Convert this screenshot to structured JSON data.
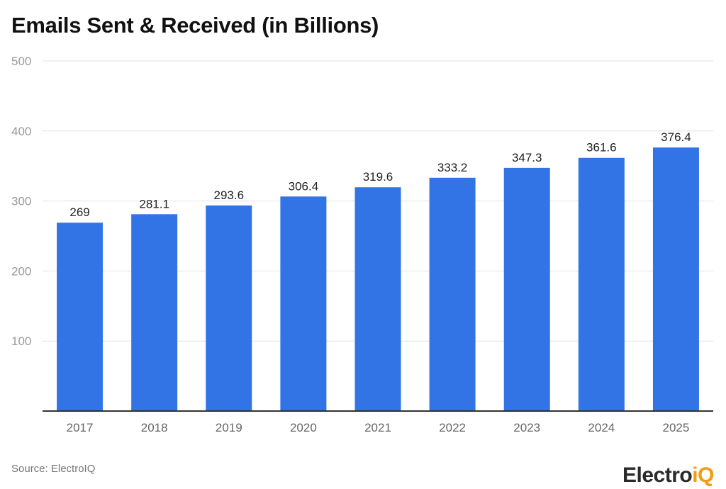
{
  "chart_data": {
    "type": "bar",
    "title": "Emails Sent & Received (in Billions)",
    "categories": [
      "2017",
      "2018",
      "2019",
      "2020",
      "2021",
      "2022",
      "2023",
      "2024",
      "2025"
    ],
    "values": [
      269,
      281.1,
      293.6,
      306.4,
      319.6,
      333.2,
      347.3,
      361.6,
      376.4
    ],
    "data_labels": [
      "269",
      "281.1",
      "293.6",
      "306.4",
      "319.6",
      "333.2",
      "347.3",
      "361.6",
      "376.4"
    ],
    "xlabel": "",
    "ylabel": "",
    "ylim": [
      0,
      500
    ],
    "yticks": [
      100,
      200,
      300,
      400,
      500
    ],
    "grid": true,
    "bar_color": "#3274e6"
  },
  "source": "Source: ElectroIQ",
  "logo": {
    "text_main": "Electro",
    "text_accent": "iQ",
    "accent_color": "#f39c12"
  }
}
